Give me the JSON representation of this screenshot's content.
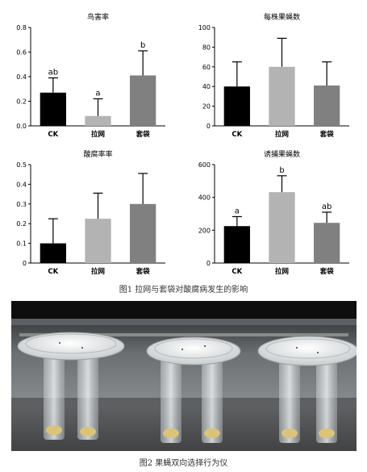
{
  "chart_data": [
    {
      "type": "bar",
      "title": "鸟害率",
      "categories": [
        "CK",
        "拉网",
        "套袋"
      ],
      "values": [
        0.27,
        0.08,
        0.41
      ],
      "errors": [
        0.12,
        0.14,
        0.2
      ],
      "letters": [
        "ab",
        "a",
        "b"
      ],
      "colors": [
        "#000000",
        "#b3b3b3",
        "#808080"
      ],
      "ylim": [
        0,
        0.8
      ],
      "yticks": [
        0,
        0.2,
        0.4,
        0.6,
        0.8
      ],
      "ytick_labels": [
        "0.0",
        "0.2",
        "0.4",
        "0.6",
        "0.8"
      ]
    },
    {
      "type": "bar",
      "title": "每株果蝇数",
      "categories": [
        "CK",
        "拉网",
        "套袋"
      ],
      "values": [
        40,
        60,
        41
      ],
      "errors": [
        25,
        29,
        24
      ],
      "letters": [
        "",
        "",
        ""
      ],
      "colors": [
        "#000000",
        "#b3b3b3",
        "#808080"
      ],
      "ylim": [
        0,
        100
      ],
      "yticks": [
        0,
        20,
        40,
        60,
        80,
        100
      ],
      "ytick_labels": [
        "0",
        "20",
        "40",
        "60",
        "80",
        "100"
      ]
    },
    {
      "type": "bar",
      "title": "酸腐率率",
      "categories": [
        "CK",
        "拉网",
        "套袋"
      ],
      "values": [
        0.1,
        0.225,
        0.3
      ],
      "errors": [
        0.125,
        0.13,
        0.155
      ],
      "letters": [
        "",
        "",
        ""
      ],
      "colors": [
        "#000000",
        "#b3b3b3",
        "#808080"
      ],
      "ylim": [
        0,
        0.5
      ],
      "yticks": [
        0,
        0.1,
        0.2,
        0.3,
        0.4,
        0.5
      ],
      "ytick_labels": [
        "0",
        "0.1",
        "0.2",
        "0.3",
        "0.4",
        "0.5"
      ]
    },
    {
      "type": "bar",
      "title": "诱捕果蝇数",
      "categories": [
        "CK",
        "拉网",
        "套袋"
      ],
      "values": [
        225,
        432,
        245
      ],
      "errors": [
        58,
        100,
        65
      ],
      "letters": [
        "a",
        "b",
        "ab"
      ],
      "colors": [
        "#000000",
        "#b3b3b3",
        "#808080"
      ],
      "ylim": [
        0,
        600
      ],
      "yticks": [
        0,
        200,
        400,
        600
      ],
      "ytick_labels": [
        "0",
        "200",
        "400",
        "600"
      ]
    }
  ],
  "captions": {
    "figure1": "图1 拉网与套袋对酸腐病发生的影响",
    "figure2": "图2 果蝇双向选择行为仪"
  }
}
